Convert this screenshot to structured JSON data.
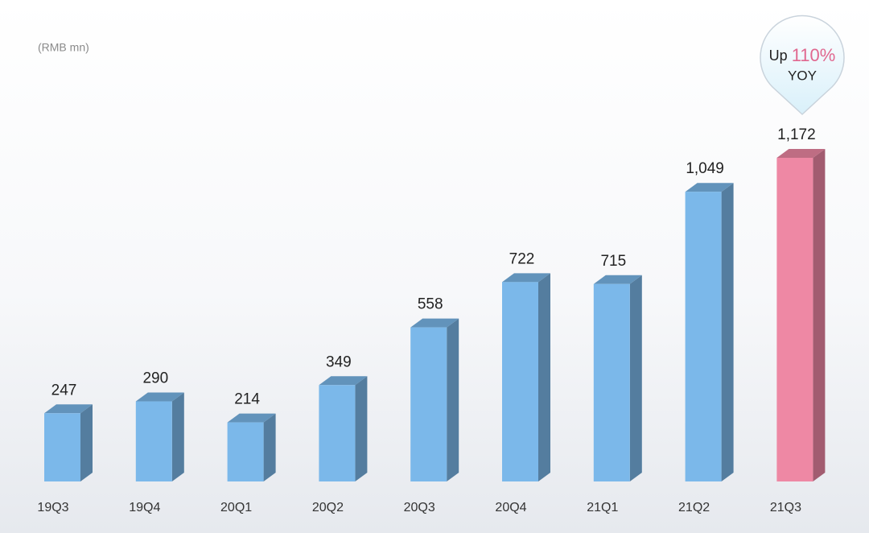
{
  "chart_data": {
    "type": "bar3d",
    "unit_label": "(RMB mn)",
    "categories": [
      "19Q3",
      "19Q4",
      "20Q1",
      "20Q2",
      "20Q3",
      "20Q4",
      "21Q1",
      "21Q2",
      "21Q3"
    ],
    "values": [
      247,
      290,
      214,
      349,
      558,
      722,
      715,
      1049,
      1172
    ],
    "value_labels": [
      "247",
      "290",
      "214",
      "349",
      "558",
      "722",
      "715",
      "1,049",
      "1,172"
    ],
    "colors": [
      "#7bb8ea",
      "#7bb8ea",
      "#7bb8ea",
      "#7bb8ea",
      "#7bb8ea",
      "#7bb8ea",
      "#7bb8ea",
      "#7bb8ea",
      "#ee88a4"
    ],
    "callout": {
      "lead": "Up",
      "highlight": "110%",
      "tail": "YOY"
    }
  }
}
